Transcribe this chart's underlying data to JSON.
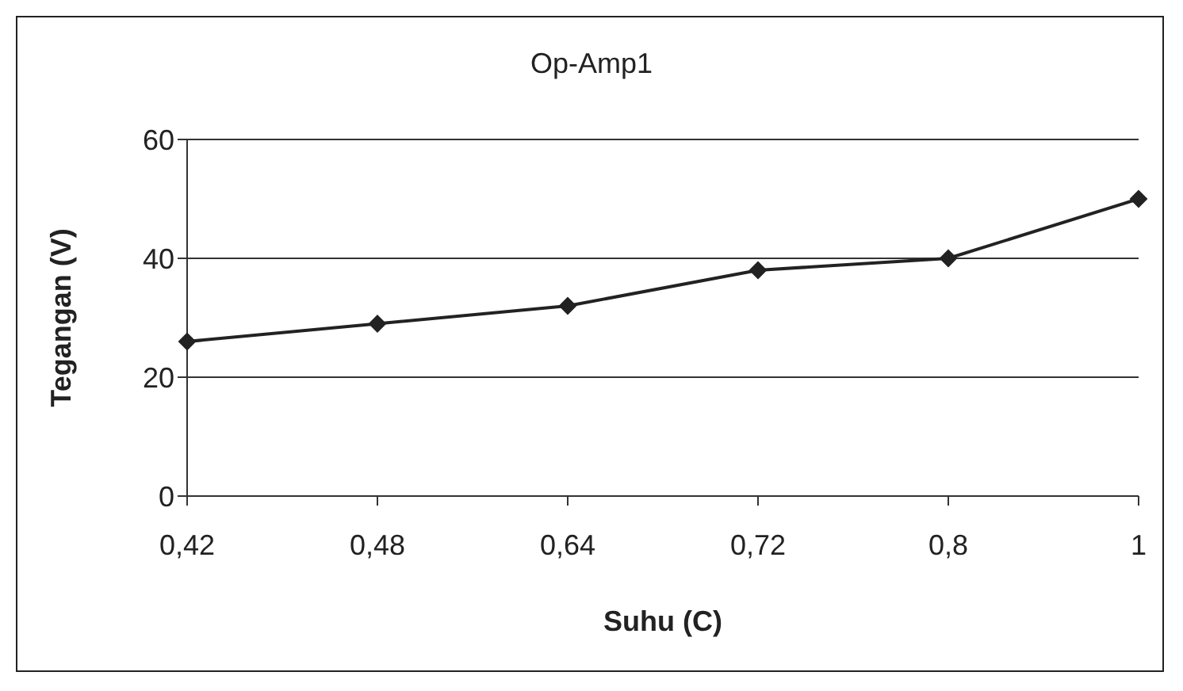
{
  "chart_data": {
    "type": "line",
    "title": "Op-Amp1",
    "xlabel": "Suhu (C)",
    "ylabel": "Tegangan (V)",
    "categories": [
      "0,42",
      "0,48",
      "0,64",
      "0,72",
      "0,8",
      "1"
    ],
    "series": [
      {
        "color": "#222222",
        "values": [
          26,
          29,
          32,
          38,
          40,
          50
        ]
      }
    ],
    "ylim": [
      0,
      60
    ],
    "yticks": [
      0,
      20,
      40,
      60
    ],
    "grid": "y",
    "marker": "diamond",
    "line_style": "solid",
    "legend": false
  }
}
